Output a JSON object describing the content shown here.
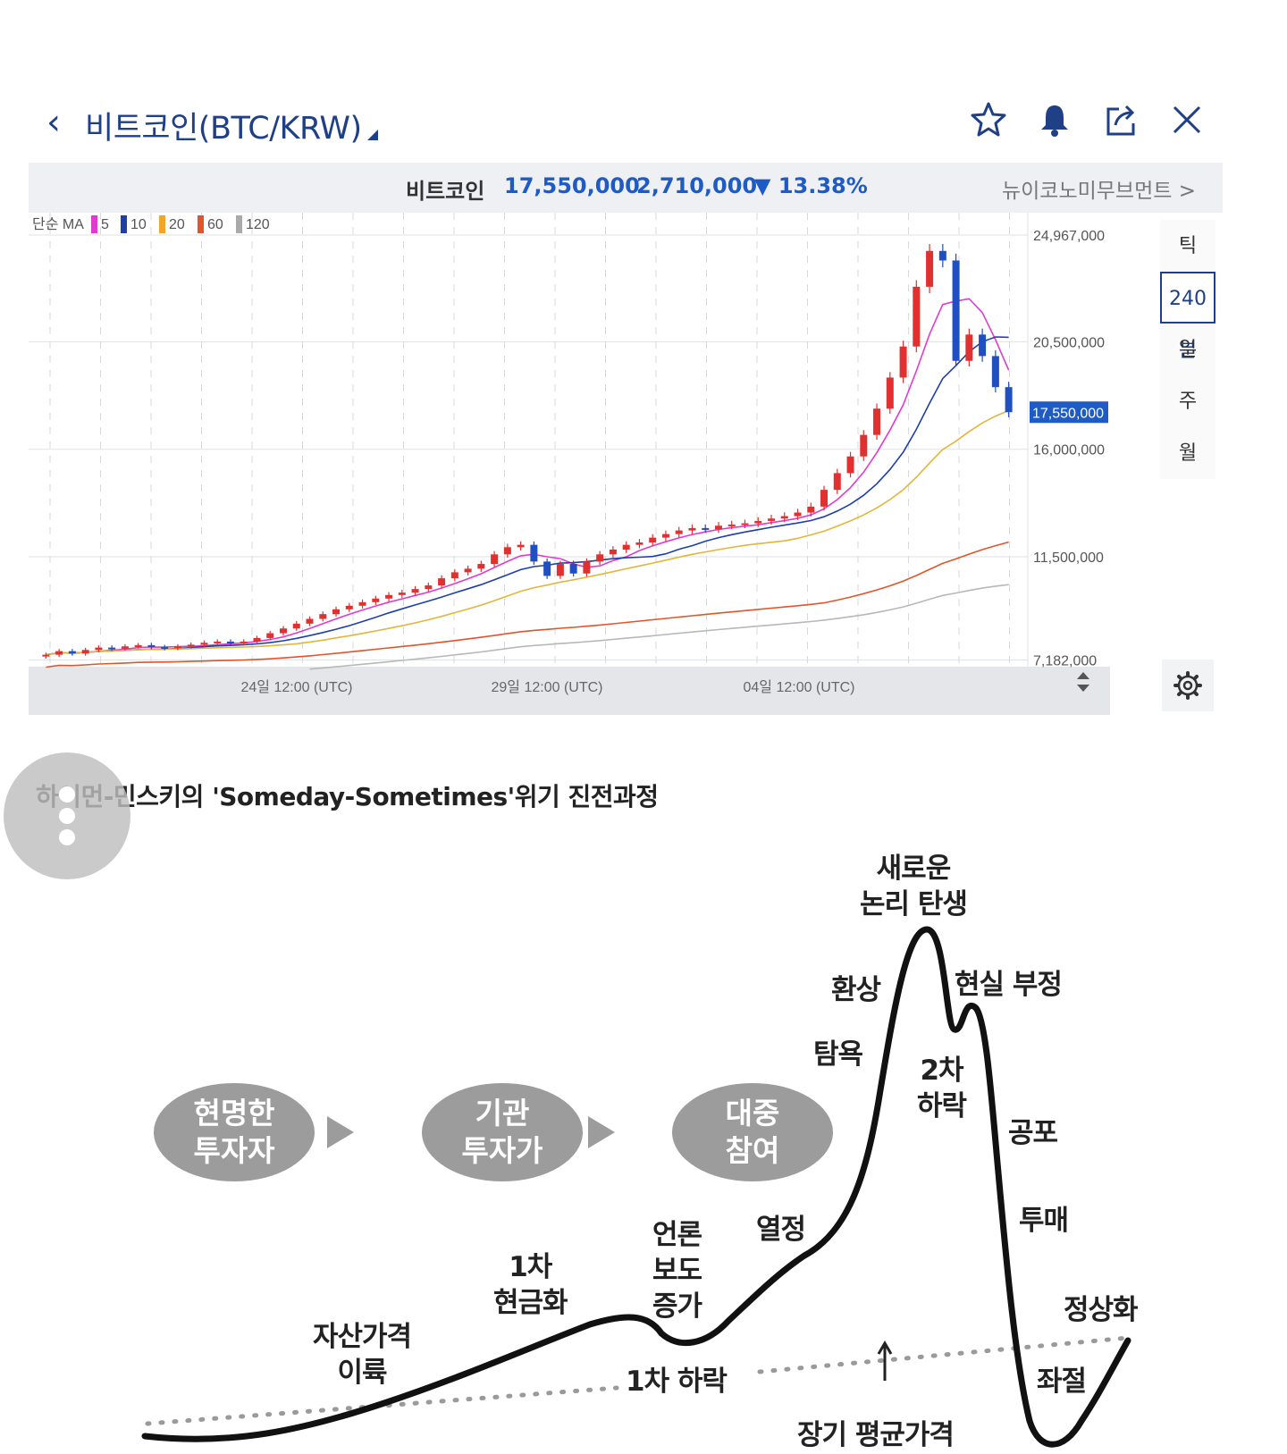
{
  "header": {
    "back_icon": "chevron-left-icon",
    "title": "비트코인(BTC/KRW)",
    "icons": [
      "star-icon",
      "bell-icon",
      "share-icon",
      "close-icon"
    ]
  },
  "price_bar": {
    "name": "비트코인",
    "price": "17,550,000",
    "change": "2,710,000",
    "change_arrow": "▼",
    "rate": "13.38%",
    "news_link": "뉴이코노미무브먼트 >"
  },
  "ma_legend": {
    "label": "단순 MA",
    "items": [
      {
        "period": "5",
        "color": "#e03bd0"
      },
      {
        "period": "10",
        "color": "#1e3fa8"
      },
      {
        "period": "20",
        "color": "#f0a62a"
      },
      {
        "period": "60",
        "color": "#e0552a"
      },
      {
        "period": "120",
        "color": "#aaaaaa"
      }
    ]
  },
  "timeframes": [
    "틱",
    "240분",
    "일",
    "주",
    "월"
  ],
  "active_timeframe": "240분",
  "chart_data": {
    "type": "candlestick",
    "title": "비트코인(BTC/KRW)",
    "y_ticks": [
      "24,967,000",
      "20,500,000",
      "16,000,000",
      "11,500,000",
      "7,182,000"
    ],
    "y_tick_values": [
      24967000,
      20500000,
      16000000,
      11500000,
      7182000
    ],
    "ylim": [
      6900000,
      25900000
    ],
    "x_ticks": [
      "24일 12:00 (UTC)",
      "29일 12:00 (UTC)",
      "04일 12:00 (UTC)"
    ],
    "current_price_label": "17,550,000",
    "current_price": 17550000,
    "close_series": [
      7400000,
      7550000,
      7450000,
      7600000,
      7700000,
      7650000,
      7750000,
      7800000,
      7720000,
      7680000,
      7750000,
      7820000,
      7900000,
      7950000,
      7880000,
      7950000,
      8100000,
      8300000,
      8500000,
      8700000,
      8900000,
      9100000,
      9300000,
      9450000,
      9600000,
      9750000,
      9900000,
      10000000,
      10150000,
      10300000,
      10600000,
      10850000,
      11000000,
      11200000,
      11600000,
      11900000,
      12000000,
      11300000,
      10700000,
      11200000,
      10800000,
      11300000,
      11600000,
      11800000,
      12000000,
      12100000,
      12300000,
      12450000,
      12600000,
      12700000,
      12650000,
      12800000,
      12850000,
      12900000,
      13000000,
      13100000,
      13200000,
      13350000,
      13600000,
      14300000,
      15000000,
      15700000,
      16600000,
      17700000,
      19000000,
      20300000,
      22800000,
      24300000,
      23900000,
      19700000,
      20800000,
      19900000,
      18600000,
      17550000
    ]
  },
  "diagram": {
    "title": "하이먼-민스키의 'Someday-Sometimes'위기 진전과정",
    "ovals": [
      {
        "l1": "현명한",
        "l2": "투자자"
      },
      {
        "l1": "기관",
        "l2": "투자가"
      },
      {
        "l1": "대중",
        "l2": "참여"
      }
    ],
    "labels": {
      "new_paradigm": [
        "새로운",
        "논리 탄생"
      ],
      "euphoria": "환상",
      "denial": "현실 부정",
      "greed": "탐욕",
      "second_drop": [
        "2차",
        "하락"
      ],
      "fear": "공포",
      "capitulation": "투매",
      "enthusiasm": "열정",
      "media": [
        "언론",
        "보도",
        "증가"
      ],
      "first_cash": [
        "1차",
        "현금화"
      ],
      "take_off": [
        "자산가격",
        "이륙"
      ],
      "first_drop": "1차 하락",
      "normalization": "정상화",
      "despair": "좌절",
      "long_term_mean": "장기 평균가격"
    }
  }
}
